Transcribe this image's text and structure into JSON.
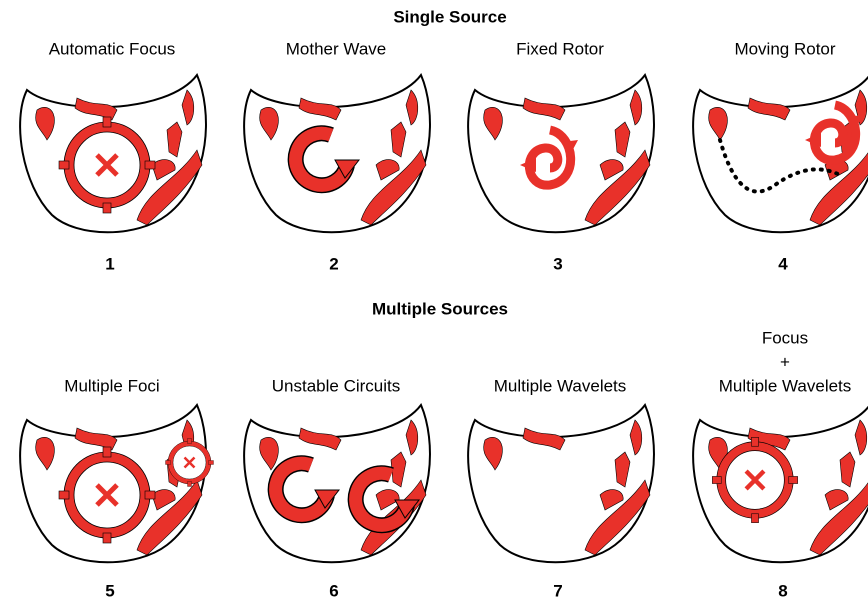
{
  "sections": [
    {
      "title": "Single Source",
      "panels": [
        {
          "label": [
            "Automatic Focus"
          ],
          "number": 1
        },
        {
          "label": [
            "Mother Wave"
          ],
          "number": 2
        },
        {
          "label": [
            "Fixed Rotor"
          ],
          "number": 3
        },
        {
          "label": [
            "Moving Rotor"
          ],
          "number": 4
        }
      ]
    },
    {
      "title": "Multiple Sources",
      "panels": [
        {
          "label": [
            "Multiple Foci"
          ],
          "number": 5
        },
        {
          "label": [
            "Unstable Circuits"
          ],
          "number": 6
        },
        {
          "label": [
            "Multiple Wavelets"
          ],
          "number": 7
        },
        {
          "label": [
            "Focus",
            "+",
            "Multiple Wavelets"
          ],
          "number": 8
        }
      ]
    }
  ]
}
